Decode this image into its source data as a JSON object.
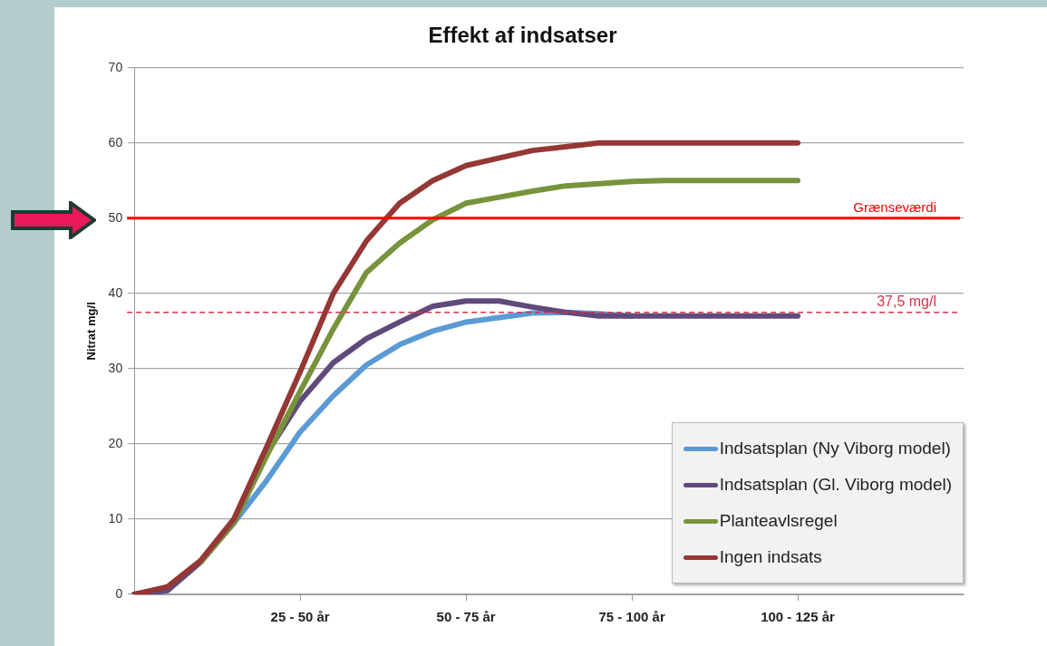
{
  "chart_data": {
    "type": "line",
    "title": "Effekt af indsatser",
    "ylabel": "Nitrat mg/l",
    "categories": [
      null,
      null,
      null,
      null,
      null,
      "25 - 50 år",
      null,
      null,
      null,
      null,
      "50 - 75 år",
      null,
      null,
      null,
      null,
      "75 - 100 år",
      null,
      null,
      null,
      null,
      "100 - 125 år",
      null,
      null,
      null,
      null,
      null
    ],
    "series": [
      {
        "name": "Indsatsplan (Ny Viborg model)",
        "color": "#5b9bd5",
        "values": [
          0,
          0.5,
          4.3,
          9.5,
          15.2,
          21.6,
          26.4,
          30.5,
          33.2,
          35,
          36.2,
          36.8,
          37.4,
          37.5,
          37.3,
          37,
          null,
          null,
          null,
          null,
          null,
          null,
          null,
          null,
          null,
          null
        ]
      },
      {
        "name": "Indsatsplan (Gl. Viborg model)",
        "color": "#604a7b",
        "values": [
          0,
          0.5,
          4.3,
          9.5,
          18.8,
          25.7,
          30.8,
          34,
          36.2,
          38.3,
          39,
          39,
          38.2,
          37.5,
          37,
          37,
          37,
          37,
          37,
          37,
          37,
          null,
          null,
          null,
          null,
          null
        ]
      },
      {
        "name": "Planteavlsregel",
        "color": "#77933c",
        "values": [
          null,
          null,
          4.3,
          9.5,
          18.5,
          27,
          35.3,
          42.8,
          46.7,
          49.8,
          52,
          52.8,
          53.6,
          54.3,
          54.6,
          54.9,
          55,
          55,
          55,
          55,
          55,
          null,
          null,
          null,
          null,
          null
        ]
      },
      {
        "name": "Ingen indsats",
        "color": "#953735",
        "values": [
          0,
          1,
          4.5,
          10,
          19.7,
          29.6,
          40,
          47,
          52,
          55,
          57,
          58,
          59,
          59.5,
          60,
          60,
          60,
          60,
          60,
          60,
          60,
          null,
          null,
          null,
          null,
          null
        ]
      }
    ],
    "ylim": [
      0,
      70
    ],
    "yticks": [
      0,
      10,
      20,
      30,
      40,
      50,
      60,
      70
    ],
    "grid": "y",
    "legend": "bottom right",
    "marker": "none",
    "line_style": "solid",
    "ref_lines": [
      {
        "axis": "y",
        "value": 50,
        "label": "Grænseværdi",
        "color": "#ff0000",
        "line_style": "solid"
      },
      {
        "axis": "y",
        "value": 37.5,
        "label": "37,5 mg/l",
        "color": "#d9304a",
        "line_style": "dashed"
      }
    ]
  }
}
